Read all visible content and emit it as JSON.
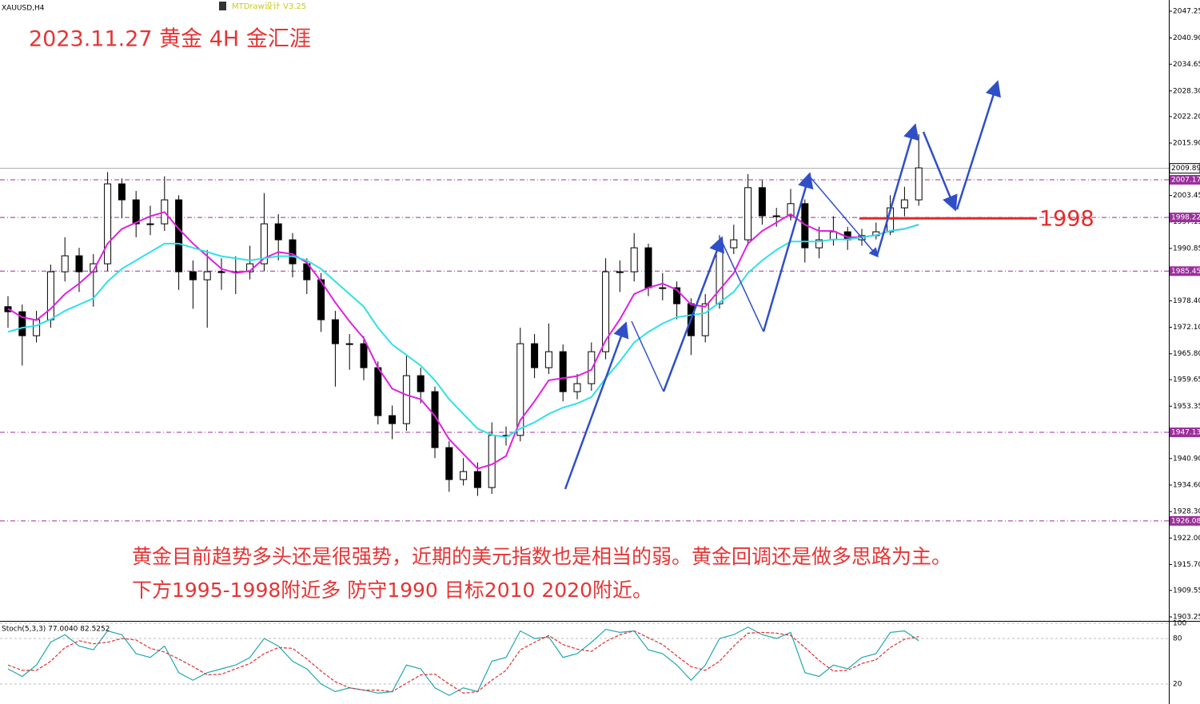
{
  "header": {
    "symbol": "XAUUSD,H4",
    "indicator": "MTDraw设计 V3.25"
  },
  "chart_data": [
    {
      "type": "candlestick",
      "title": "2023.11.27 黄金 4H 金汇涯",
      "annotations": [
        "黄金目前趋势多头还是很强势，近期的美元指数也是相当的弱。黄金回调还是做多思路为主。",
        "下方1995-1998附近多 防守1990 目标2010 2020附近。"
      ],
      "ylim": [
        1902.49,
        2049.91
      ],
      "yticks": [
        2047.25,
        {
          "value": 2040.9,
          "label": "2040.90"
        },
        2034.65,
        {
          "value": 2028.3,
          "label": "2028.30"
        },
        {
          "value": 2022.2,
          "label": "2022.20"
        },
        {
          "value": 2015.9,
          "label": "2015.90"
        },
        2003.45,
        1997.15,
        1990.85,
        {
          "value": 1978.4,
          "label": "1978.40"
        },
        {
          "value": 1972.1,
          "label": "1972.10"
        },
        {
          "value": 1965.8,
          "label": "1965.80"
        },
        1959.65,
        1953.35,
        {
          "value": 1940.9,
          "label": "1940.90"
        },
        {
          "value": 1934.6,
          "label": "1934.60"
        },
        {
          "value": 1928.3,
          "label": "1928.30"
        },
        {
          "value": 1922,
          "label": "1922.00"
        },
        {
          "value": 1915.7,
          "label": "1915.70"
        },
        1909.55,
        1903.25
      ],
      "price_line": 2009.89,
      "levels": [
        2007.17,
        1998.22,
        1985.45,
        1947.13,
        1926.08
      ],
      "level_color": "#9b2f9b",
      "support_level": 1998,
      "support_color": "#e82828",
      "candles": [
        [
          1977.0,
          1979.5,
          1972.0,
          1975.8
        ],
        [
          1975.8,
          1977.5,
          1963.0,
          1970.1
        ],
        [
          1970.1,
          1976.0,
          1968.5,
          1973.9
        ],
        [
          1973.9,
          1987.0,
          1972.0,
          1985.3
        ],
        [
          1985.3,
          1993.5,
          1983.0,
          1989.1
        ],
        [
          1989.1,
          1991.0,
          1980.5,
          1985.3
        ],
        [
          1985.3,
          1989.5,
          1977.0,
          1987.2
        ],
        [
          1987.2,
          2009.0,
          1985.5,
          2006.2
        ],
        [
          2006.2,
          2007.5,
          1998.0,
          2002.4
        ],
        [
          2002.4,
          2004.5,
          1993.5,
          1996.7
        ],
        [
          1996.7,
          2001.0,
          1994.0,
          1996.7
        ],
        [
          1996.7,
          2008.0,
          1995.0,
          2002.4
        ],
        [
          2002.4,
          2003.5,
          1981.0,
          1985.3
        ],
        [
          1985.3,
          1988.0,
          1976.5,
          1983.4
        ],
        [
          1983.4,
          1990.5,
          1972.0,
          1985.3
        ],
        [
          1985.3,
          1988.5,
          1981.0,
          1985.3
        ],
        [
          1985.3,
          1989.0,
          1980.0,
          1985.3
        ],
        [
          1985.3,
          1991.5,
          1983.5,
          1987.2
        ],
        [
          1987.2,
          2004.0,
          1985.5,
          1996.7
        ],
        [
          1996.7,
          1999.0,
          1988.0,
          1992.9
        ],
        [
          1992.9,
          1994.5,
          1984.0,
          1987.2
        ],
        [
          1987.2,
          1988.5,
          1980.0,
          1983.4
        ],
        [
          1983.4,
          1985.0,
          1971.0,
          1973.9
        ],
        [
          1973.9,
          1976.0,
          1958.0,
          1968.2
        ],
        [
          1968.2,
          1970.5,
          1962.0,
          1968.2
        ],
        [
          1968.2,
          1970.0,
          1959.5,
          1962.5
        ],
        [
          1962.5,
          1964.0,
          1949.0,
          1951.1
        ],
        [
          1951.1,
          1953.5,
          1945.5,
          1949.2
        ],
        [
          1949.2,
          1965.5,
          1947.5,
          1960.6
        ],
        [
          1960.6,
          1962.5,
          1954.0,
          1956.8
        ],
        [
          1956.8,
          1958.0,
          1941.0,
          1943.5
        ],
        [
          1943.5,
          1945.0,
          1933.0,
          1935.9
        ],
        [
          1935.9,
          1941.0,
          1934.5,
          1937.8
        ],
        [
          1937.8,
          1940.0,
          1932.0,
          1934.0
        ],
        [
          1934.0,
          1949.5,
          1932.5,
          1946.4
        ],
        [
          1946.4,
          1948.5,
          1944.0,
          1946.4
        ],
        [
          1946.4,
          1972.0,
          1945.0,
          1968.2
        ],
        [
          1968.2,
          1970.5,
          1960.0,
          1962.5
        ],
        [
          1962.5,
          1973.0,
          1961.0,
          1966.3
        ],
        [
          1966.3,
          1968.0,
          1954.5,
          1956.8
        ],
        [
          1956.8,
          1961.0,
          1955.0,
          1958.7
        ],
        [
          1958.7,
          1968.5,
          1957.0,
          1966.3
        ],
        [
          1966.3,
          1988.5,
          1964.5,
          1985.3
        ],
        [
          1985.3,
          1988.0,
          1980.5,
          1985.3
        ],
        [
          1985.3,
          1994.5,
          1983.0,
          1991.0
        ],
        [
          1991.0,
          1992.0,
          1979.5,
          1981.5
        ],
        [
          1981.5,
          1985.0,
          1978.5,
          1981.5
        ],
        [
          1981.5,
          1983.0,
          1974.0,
          1977.7
        ],
        [
          1977.7,
          1979.0,
          1965.5,
          1970.1
        ],
        [
          1970.1,
          1980.0,
          1968.5,
          1977.7
        ],
        [
          1977.7,
          1994.0,
          1976.5,
          1991.0
        ],
        [
          1991.0,
          1996.5,
          1989.5,
          1992.9
        ],
        [
          1992.9,
          2008.5,
          1991.5,
          2005.3
        ],
        [
          2005.3,
          2007.0,
          1996.5,
          1998.6
        ],
        [
          1998.6,
          2000.5,
          1996.0,
          1998.6
        ],
        [
          1998.6,
          2005.0,
          1997.5,
          2001.5
        ],
        [
          2001.5,
          2002.5,
          1987.5,
          1991.0
        ],
        [
          1991.0,
          1996.0,
          1988.5,
          1992.9
        ],
        [
          1992.9,
          1998.5,
          1991.5,
          1994.8
        ],
        [
          1994.8,
          1996.0,
          1990.5,
          1992.9
        ],
        [
          1992.9,
          1995.5,
          1991.5,
          1993.9
        ],
        [
          1993.9,
          1997.0,
          1993.0,
          1994.8
        ],
        [
          1994.8,
          2003.5,
          1994.0,
          2000.5
        ],
        [
          2000.5,
          2005.5,
          1998.5,
          2002.4
        ],
        [
          2002.4,
          2018.0,
          2001.0,
          2010.0
        ]
      ],
      "series": [
        {
          "color": "#e020e0",
          "values": [
            1976.5,
            1974.5,
            1973.8,
            1976.5,
            1980.0,
            1982.5,
            1985.5,
            1992.0,
            1995.5,
            1997.0,
            1998.5,
            1999.5,
            1995.5,
            1992.0,
            1989.0,
            1986.0,
            1985.0,
            1985.5,
            1988.5,
            1990.0,
            1989.5,
            1987.5,
            1983.0,
            1978.0,
            1973.5,
            1969.5,
            1962.5,
            1957.5,
            1956.0,
            1955.0,
            1951.0,
            1945.5,
            1942.0,
            1938.5,
            1939.5,
            1941.5,
            1950.0,
            1954.5,
            1959.5,
            1960.0,
            1960.5,
            1962.0,
            1969.0,
            1974.0,
            1980.0,
            1981.5,
            1982.5,
            1981.0,
            1977.5,
            1977.0,
            1981.0,
            1985.0,
            1992.0,
            1995.0,
            1997.0,
            1999.0,
            1996.5,
            1995.0,
            1995.0,
            1993.5,
            1993.5,
            1994.0,
            1995.0,
            1995.5,
            1996.5
          ]
        },
        {
          "color": "#30e0e8",
          "values": [
            1971,
            1972,
            1972.5,
            1974,
            1976,
            1977.5,
            1979,
            1983,
            1986,
            1988,
            1990,
            1992,
            1992,
            1991,
            1990,
            1989,
            1988.5,
            1988,
            1988.5,
            1989,
            1989,
            1988,
            1986,
            1983,
            1980,
            1977,
            1972,
            1968,
            1965.5,
            1963,
            1959.5,
            1955,
            1951.5,
            1948,
            1946.5,
            1946,
            1948,
            1949.5,
            1951.5,
            1953,
            1954,
            1955.5,
            1960,
            1964,
            1968.5,
            1971,
            1973,
            1974.5,
            1975,
            1975.5,
            1978,
            1980.5,
            1985,
            1988,
            1990.5,
            1992.5,
            1992.5,
            1992.5,
            1993,
            1993,
            1993.5,
            1994,
            1995,
            1995.5,
            1996.5
          ]
        }
      ]
    },
    {
      "type": "line",
      "title": "Stoch(5,3,3) 77.0040 82.5252",
      "ylim": [
        0,
        100
      ],
      "yticks": [
        20,
        80,
        100
      ],
      "series": [
        {
          "color": "#20a8b0",
          "values": [
            40,
            30,
            45,
            75,
            85,
            70,
            65,
            90,
            85,
            60,
            55,
            70,
            35,
            25,
            35,
            40,
            45,
            55,
            80,
            70,
            50,
            40,
            20,
            10,
            15,
            12,
            8,
            10,
            45,
            40,
            15,
            5,
            15,
            10,
            50,
            55,
            90,
            80,
            82,
            55,
            60,
            75,
            92,
            88,
            90,
            65,
            60,
            45,
            25,
            45,
            80,
            85,
            95,
            85,
            80,
            88,
            35,
            30,
            45,
            40,
            55,
            60,
            88,
            90,
            77.004
          ]
        },
        {
          "color": "#e03030",
          "dashed": true,
          "values": [
            45,
            38,
            38,
            50,
            68,
            77,
            73,
            75,
            80,
            78,
            67,
            62,
            53,
            43,
            32,
            33,
            40,
            47,
            60,
            68,
            67,
            53,
            37,
            23,
            15,
            12,
            12,
            10,
            21,
            32,
            33,
            20,
            8,
            10,
            25,
            38,
            65,
            75,
            84,
            72,
            66,
            63,
            76,
            85,
            90,
            81,
            72,
            57,
            43,
            38,
            50,
            70,
            87,
            88,
            87,
            84,
            68,
            51,
            37,
            38,
            47,
            52,
            68,
            79,
            82.5252
          ]
        }
      ]
    }
  ]
}
